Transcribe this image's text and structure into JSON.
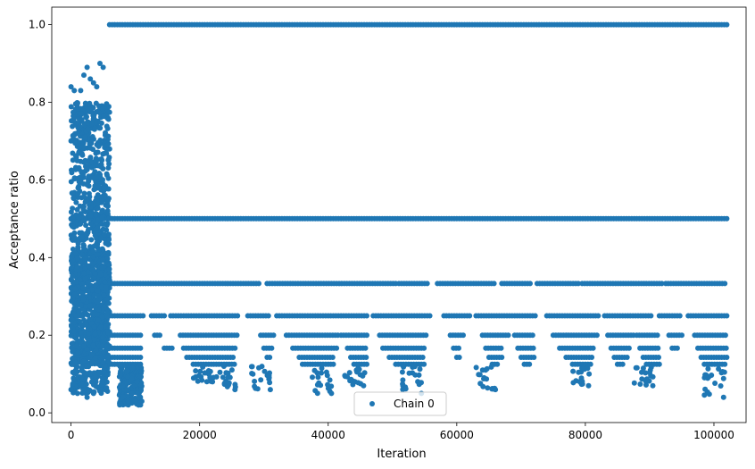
{
  "chart_data": {
    "type": "scatter",
    "xlabel": "Iteration",
    "ylabel": "Acceptance ratio",
    "xlim": [
      -3000,
      105000
    ],
    "ylim": [
      -0.025,
      1.045
    ],
    "xticks": [
      0,
      20000,
      40000,
      60000,
      80000,
      100000
    ],
    "xtick_labels": [
      "0",
      "20000",
      "40000",
      "60000",
      "80000",
      "100000"
    ],
    "yticks": [
      0.0,
      0.2,
      0.4,
      0.6,
      0.8,
      1.0
    ],
    "ytick_labels": [
      "0.0",
      "0.2",
      "0.4",
      "0.6",
      "0.8",
      "1.0"
    ],
    "grid": false,
    "legend": {
      "placement": "lower center",
      "entries": [
        "Chain 0"
      ]
    },
    "series": [
      {
        "name": "Chain 0",
        "color": "#1f77b4",
        "marker": "circle",
        "bands": [
          {
            "y": 1.0,
            "x_range": [
              6000,
              102000
            ]
          },
          {
            "y": 0.5,
            "x_range": [
              0,
              102000
            ]
          },
          {
            "y": 0.333,
            "x_segments": [
              [
                6000,
                29500
              ],
              [
                30500,
                50500
              ],
              [
                51000,
                55500
              ],
              [
                57000,
                66000
              ],
              [
                67000,
                71500
              ],
              [
                72500,
                79000
              ],
              [
                79500,
                92000
              ],
              [
                92500,
                102000
              ]
            ]
          },
          {
            "y": 0.25,
            "x_segments": [
              [
                6000,
                11500
              ],
              [
                12500,
                14500
              ],
              [
                15500,
                26000
              ],
              [
                27500,
                31000
              ],
              [
                32000,
                46000
              ],
              [
                47000,
                56000
              ],
              [
                58000,
                62000
              ],
              [
                63000,
                72500
              ],
              [
                74000,
                82000
              ],
              [
                83000,
                90500
              ],
              [
                91500,
                95000
              ],
              [
                96000,
                102000
              ]
            ]
          },
          {
            "y": 0.2,
            "x_segments": [
              [
                6000,
                11000
              ],
              [
                13000,
                14000
              ],
              [
                17000,
                26000
              ],
              [
                29500,
                31500
              ],
              [
                33500,
                41500
              ],
              [
                42000,
                46000
              ],
              [
                48000,
                55500
              ],
              [
                59000,
                61000
              ],
              [
                64000,
                68000
              ],
              [
                69000,
                72000
              ],
              [
                75000,
                82000
              ],
              [
                83500,
                87500
              ],
              [
                88000,
                91500
              ],
              [
                93000,
                95000
              ],
              [
                97000,
                102000
              ]
            ]
          },
          {
            "y": 0.1667,
            "x_segments": [
              [
                6000,
                11000
              ],
              [
                14500,
                16000
              ],
              [
                17500,
                25500
              ],
              [
                30000,
                31500
              ],
              [
                34500,
                41500
              ],
              [
                43000,
                46000
              ],
              [
                48500,
                55000
              ],
              [
                59500,
                60500
              ],
              [
                64500,
                67000
              ],
              [
                69500,
                72000
              ],
              [
                76000,
                81500
              ],
              [
                84000,
                87000
              ],
              [
                88500,
                91500
              ],
              [
                93500,
                94500
              ],
              [
                97500,
                102000
              ]
            ]
          },
          {
            "y": 0.1429,
            "x_segments": [
              [
                6000,
                11000
              ],
              [
                18000,
                25500
              ],
              [
                30500,
                31000
              ],
              [
                35500,
                41000
              ],
              [
                43500,
                46000
              ],
              [
                49500,
                55000
              ],
              [
                60000,
                60500
              ],
              [
                65000,
                67000
              ],
              [
                70000,
                72000
              ],
              [
                77000,
                81000
              ],
              [
                84500,
                86500
              ],
              [
                89000,
                91500
              ],
              [
                98000,
                102000
              ]
            ]
          },
          {
            "y": 0.125,
            "x_segments": [
              [
                6000,
                11000
              ],
              [
                19000,
                25500
              ],
              [
                36000,
                41000
              ],
              [
                44000,
                46000
              ],
              [
                50500,
                55000
              ],
              [
                65500,
                66500
              ],
              [
                70500,
                71500
              ],
              [
                78000,
                81000
              ],
              [
                85000,
                86000
              ],
              [
                89500,
                91500
              ],
              [
                98500,
                102000
              ]
            ]
          }
        ],
        "regions": [
          {
            "x_range": [
              0,
              6000
            ],
            "y_range": [
              0.03,
              0.9
            ],
            "description_points": [
              [
                0,
                0.84
              ],
              [
                500,
                0.83
              ],
              [
                1500,
                0.83
              ],
              [
                2000,
                0.87
              ],
              [
                2500,
                0.89
              ],
              [
                3000,
                0.86
              ],
              [
                3500,
                0.85
              ],
              [
                4000,
                0.84
              ],
              [
                4500,
                0.9
              ],
              [
                5000,
                0.89
              ],
              [
                1000,
                0.05
              ],
              [
                2500,
                0.04
              ],
              [
                3500,
                0.05
              ],
              [
                4500,
                0.06
              ],
              [
                0,
                0.06
              ]
            ]
          },
          {
            "x_range": [
              6000,
              11000
            ],
            "y_range": [
              0.02,
              0.12
            ],
            "description_points": [
              [
                8000,
                0.07
              ],
              [
                9500,
                0.05
              ],
              [
                10000,
                0.03
              ],
              [
                10500,
                0.02
              ],
              [
                11000,
                0.03
              ]
            ]
          }
        ],
        "dips": [
          {
            "x": 22000,
            "y_min": 0.08
          },
          {
            "x": 25500,
            "y_min": 0.06
          },
          {
            "x": 31000,
            "y_min": 0.06
          },
          {
            "x": 40500,
            "y_min": 0.05
          },
          {
            "x": 45500,
            "y_min": 0.07
          },
          {
            "x": 54500,
            "y_min": 0.05
          },
          {
            "x": 66000,
            "y_min": 0.06
          },
          {
            "x": 80500,
            "y_min": 0.07
          },
          {
            "x": 90500,
            "y_min": 0.07
          },
          {
            "x": 101500,
            "y_min": 0.04
          }
        ]
      }
    ]
  }
}
